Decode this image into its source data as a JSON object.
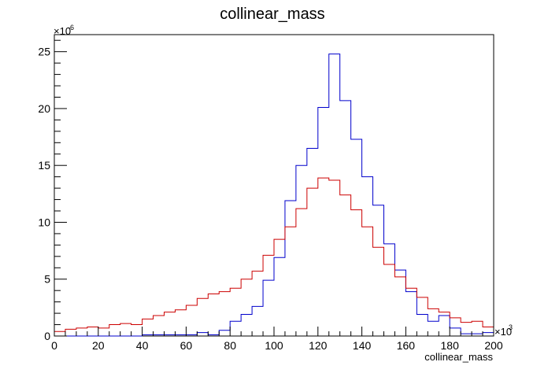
{
  "chart_data": {
    "type": "line",
    "title": "collinear_mass",
    "xlabel": "collinear_mass",
    "ylabel": "",
    "x_multiplier": "×10",
    "x_multiplier_exp": "3",
    "y_multiplier": "×10",
    "y_multiplier_exp": "-6",
    "xlim": [
      0,
      200
    ],
    "ylim": [
      0,
      26.5
    ],
    "x_ticks": [
      "0",
      "20",
      "40",
      "60",
      "80",
      "100",
      "120",
      "140",
      "160",
      "180",
      "200"
    ],
    "y_ticks": [
      "0",
      "5",
      "10",
      "15",
      "20",
      "25"
    ],
    "grid": false,
    "bin_edges": [
      0,
      5,
      10,
      15,
      20,
      25,
      30,
      35,
      40,
      45,
      50,
      55,
      60,
      65,
      70,
      75,
      80,
      85,
      90,
      95,
      100,
      105,
      110,
      115,
      120,
      125,
      130,
      135,
      140,
      145,
      150,
      155,
      160,
      165,
      170,
      175,
      180,
      185,
      190,
      195,
      200
    ],
    "series": [
      {
        "color": "#0000cc",
        "values": [
          0,
          0,
          0,
          0,
          0,
          0,
          0,
          0,
          0.1,
          0.1,
          0.1,
          0.1,
          0.1,
          0.3,
          0.1,
          0.5,
          1.3,
          1.9,
          2.6,
          4.9,
          6.9,
          11.9,
          15.0,
          16.5,
          20.1,
          24.8,
          20.7,
          17.3,
          14.0,
          11.5,
          8.1,
          5.8,
          3.9,
          1.9,
          1.3,
          1.8,
          0.7,
          0.2,
          0.2,
          0.3
        ]
      },
      {
        "color": "#cc0000",
        "values": [
          0.4,
          0.6,
          0.7,
          0.8,
          0.7,
          1.0,
          1.1,
          1.0,
          1.5,
          1.8,
          2.1,
          2.3,
          2.7,
          3.3,
          3.7,
          3.9,
          4.2,
          5.0,
          5.7,
          7.1,
          8.5,
          9.6,
          11.2,
          13.0,
          13.9,
          13.7,
          12.4,
          11.1,
          9.6,
          7.8,
          6.3,
          5.2,
          4.2,
          3.4,
          2.4,
          2.1,
          1.6,
          1.2,
          1.3,
          0.8
        ]
      }
    ]
  }
}
